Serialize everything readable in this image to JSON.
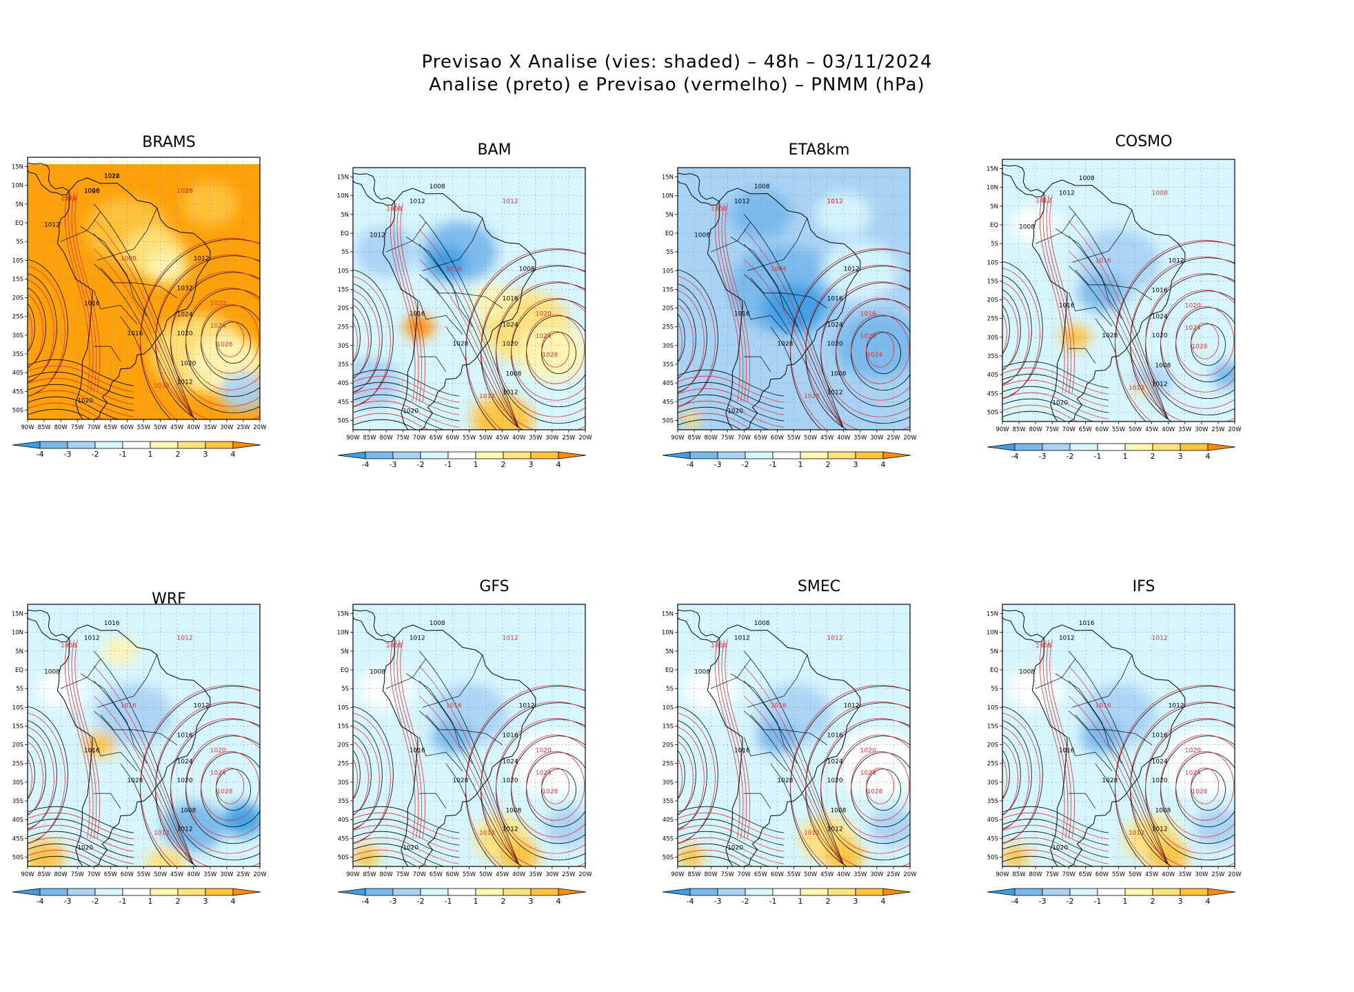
{
  "title": {
    "line1": "Previsao X Analise (vies: shaded) – 48h – 03/11/2024",
    "line2": "Analise (preto) e Previsao (vermelho) – PNMM (hPa)"
  },
  "map": {
    "lon_labels": [
      "90W",
      "85W",
      "80W",
      "75W",
      "70W",
      "65W",
      "60W",
      "55W",
      "50W",
      "45W",
      "40W",
      "35W",
      "30W",
      "25W",
      "20W"
    ],
    "lat_labels": [
      "15N",
      "10N",
      "5N",
      "EQ",
      "5S",
      "10S",
      "15S",
      "20S",
      "25S",
      "30S",
      "35S",
      "40S",
      "45S",
      "50S"
    ]
  },
  "colorbar": {
    "labels": [
      "-4",
      "-3",
      "-2",
      "-1",
      "1",
      "2",
      "3",
      "4"
    ],
    "colors": [
      "#3c9fe7",
      "#78b8ec",
      "#a9d3f5",
      "#d6f5fd",
      "#ffffff",
      "#fff6b2",
      "#ffe27a",
      "#ffc33c",
      "#ffa10a",
      "#ff8c00"
    ]
  },
  "colors": {
    "analysis": "#000000",
    "forecast": "#e03030",
    "land": "#000000"
  },
  "panels": [
    {
      "name": "BRAMS",
      "bias": "warm-strong",
      "labels_black": [
        "1012",
        "1008",
        "1012",
        "1012",
        "1016",
        "1020",
        "1024",
        "1016",
        "1020",
        "1012",
        "1020",
        "1032",
        "1028",
        "1020"
      ],
      "labels_red": [
        "1016",
        "1012",
        "1008",
        "1020",
        "1024",
        "1028",
        "1032",
        "1020",
        "1024"
      ]
    },
    {
      "name": "BAM",
      "bias": "mixed",
      "labels_black": [
        "1008",
        "1012",
        "1012",
        "1008",
        "1016",
        "1020",
        "1024",
        "1028",
        "1020",
        "1012",
        "1008",
        "1016"
      ],
      "labels_red": [
        "1012",
        "1008",
        "1016",
        "1020",
        "1024",
        "1028",
        "1012"
      ]
    },
    {
      "name": "ETA8km",
      "bias": "cold",
      "labels_black": [
        "1008",
        "1012",
        "1008",
        "1012",
        "1016",
        "1020",
        "1024",
        "1028",
        "1020",
        "1012",
        "1008",
        "1016"
      ],
      "labels_red": [
        "1012",
        "1008",
        "1004",
        "1016",
        "1020",
        "1024",
        "1028",
        "1012"
      ]
    },
    {
      "name": "COSMO",
      "bias": "cool",
      "labels_black": [
        "1008",
        "1012",
        "1008",
        "1012",
        "1016",
        "1020",
        "1024",
        "1028",
        "1020",
        "1012",
        "1008",
        "1016"
      ],
      "labels_red": [
        "1008",
        "1012",
        "1016",
        "1020",
        "1024",
        "1028",
        "1012"
      ]
    },
    {
      "name": "WRF",
      "bias": "mixed-light",
      "labels_black": [
        "1016",
        "1012",
        "1008",
        "1012",
        "1016",
        "1020",
        "1024",
        "1028",
        "1020",
        "1012",
        "1008",
        "1016"
      ],
      "labels_red": [
        "1012",
        "1008",
        "1016",
        "1020",
        "1024",
        "1028",
        "1012"
      ]
    },
    {
      "name": "GFS",
      "bias": "cool-light",
      "labels_black": [
        "1008",
        "1012",
        "1008",
        "1012",
        "1016",
        "1020",
        "1024",
        "1028",
        "1020",
        "1012",
        "1008",
        "1016"
      ],
      "labels_red": [
        "1012",
        "1008",
        "1016",
        "1020",
        "1024",
        "1028",
        "1012"
      ]
    },
    {
      "name": "SMEC",
      "bias": "cool-light",
      "labels_black": [
        "1008",
        "1012",
        "1008",
        "1012",
        "1016",
        "1020",
        "1024",
        "1028",
        "1020",
        "1012",
        "1008",
        "1016"
      ],
      "labels_red": [
        "1012",
        "1008",
        "1016",
        "1020",
        "1024",
        "1028",
        "1012"
      ]
    },
    {
      "name": "IFS",
      "bias": "cool-light",
      "labels_black": [
        "1016",
        "1012",
        "1008",
        "1012",
        "1016",
        "1020",
        "1024",
        "1028",
        "1020",
        "1012",
        "1008",
        "1016"
      ],
      "labels_red": [
        "1012",
        "1008",
        "1016",
        "1020",
        "1024",
        "1028",
        "1012"
      ]
    }
  ]
}
